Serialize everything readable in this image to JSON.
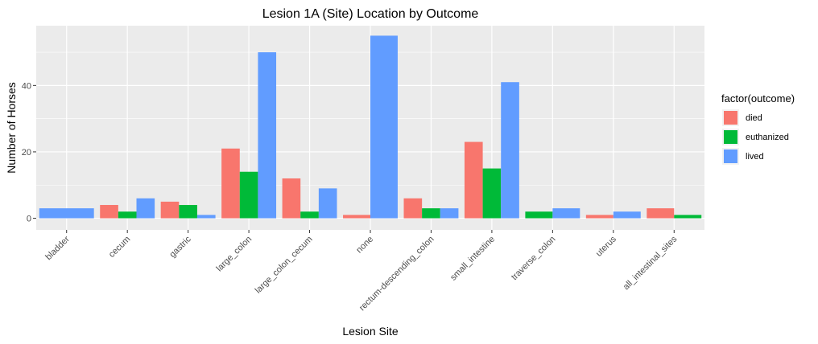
{
  "chart_data": {
    "type": "bar",
    "title": "Lesion 1A (Site) Location by Outcome",
    "xlabel": "Lesion Site",
    "ylabel": "Number of Horses",
    "ylim": [
      -3.5,
      58
    ],
    "yticks": [
      0,
      20,
      40
    ],
    "grid": true,
    "legend_position": "right",
    "legend_title": "factor(outcome)",
    "categories": [
      "bladder",
      "cecum",
      "gastric",
      "large_colon",
      "large_colon_cecum",
      "none",
      "rectum-descending_colon",
      "small_intestine",
      "traverse_colon",
      "uterus",
      "all_intestinal_sites"
    ],
    "series": [
      {
        "name": "died",
        "color": "#F8766D",
        "values": [
          null,
          4,
          5,
          21,
          12,
          1,
          6,
          23,
          null,
          1,
          3
        ]
      },
      {
        "name": "euthanized",
        "color": "#00BA38",
        "values": [
          null,
          2,
          4,
          14,
          2,
          null,
          3,
          15,
          2,
          null,
          1
        ]
      },
      {
        "name": "lived",
        "color": "#619CFF",
        "values": [
          3,
          6,
          1,
          50,
          9,
          55,
          3,
          41,
          3,
          2,
          null
        ]
      }
    ]
  }
}
